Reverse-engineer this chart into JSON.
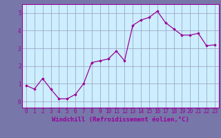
{
  "x": [
    0,
    1,
    2,
    3,
    4,
    5,
    6,
    7,
    8,
    9,
    10,
    11,
    12,
    13,
    14,
    15,
    16,
    17,
    18,
    19,
    20,
    21,
    22,
    23
  ],
  "y": [
    0.9,
    0.7,
    1.3,
    0.7,
    0.15,
    0.15,
    0.4,
    1.0,
    2.2,
    2.3,
    2.4,
    2.85,
    2.3,
    4.3,
    4.6,
    4.75,
    5.1,
    4.45,
    4.1,
    3.75,
    3.75,
    3.85,
    3.15,
    3.2
  ],
  "line_color": "#990099",
  "marker": "D",
  "marker_size": 1.8,
  "line_width": 0.9,
  "xlabel": "Windchill (Refroidissement éolien,°C)",
  "xlabel_fontsize": 6.5,
  "xlim": [
    -0.5,
    23.5
  ],
  "ylim": [
    -0.35,
    5.5
  ],
  "yticks": [
    0,
    1,
    2,
    3,
    4,
    5
  ],
  "xticks": [
    0,
    1,
    2,
    3,
    4,
    5,
    6,
    7,
    8,
    9,
    10,
    11,
    12,
    13,
    14,
    15,
    16,
    17,
    18,
    19,
    20,
    21,
    22,
    23
  ],
  "grid_color": "#9999bb",
  "bg_color": "#cceeff",
  "tick_fontsize": 5.5,
  "fig_bg_color": "#7777aa",
  "spine_color": "#990099"
}
